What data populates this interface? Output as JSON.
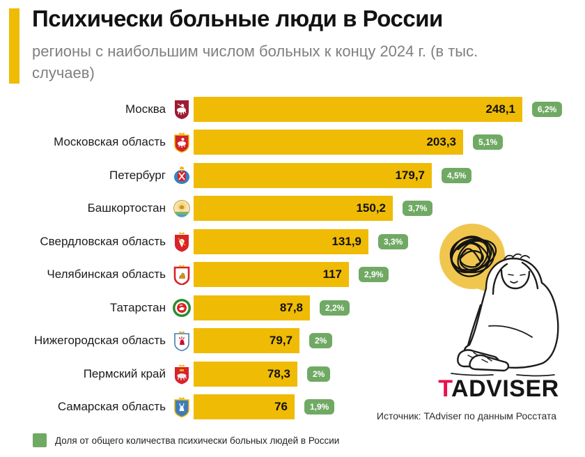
{
  "header": {
    "title": "Психически больные люди в России",
    "subtitle": "регионы с наибольшим числом больных к концу 2024 г. (в тыс. случаев)"
  },
  "chart_data": {
    "type": "bar",
    "orientation": "horizontal",
    "unit": "тыс. случаев",
    "xlim": [
      0,
      248.1
    ],
    "bar_color": "#EFBB05",
    "badge_color": "#70A964",
    "categories": [
      "Москва",
      "Московская область",
      "Петербург",
      "Башкортостан",
      "Свердловская область",
      "Челябинская область",
      "Татарстан",
      "Нижегородская область",
      "Пермский край",
      "Самарская область"
    ],
    "values": [
      248.1,
      203.3,
      179.7,
      150.2,
      131.9,
      117,
      87.8,
      79.7,
      78.3,
      76
    ],
    "shares_pct": [
      6.2,
      5.1,
      4.5,
      3.7,
      3.3,
      2.9,
      2.2,
      2,
      2,
      1.9
    ],
    "rows": [
      {
        "region": "Москва",
        "value": "248,1",
        "value_num": 248.1,
        "share": "6,2%",
        "emblem": "moscow"
      },
      {
        "region": "Московская область",
        "value": "203,3",
        "value_num": 203.3,
        "share": "5,1%",
        "emblem": "moscow-oblast"
      },
      {
        "region": "Петербург",
        "value": "179,7",
        "value_num": 179.7,
        "share": "4,5%",
        "emblem": "saint-petersburg"
      },
      {
        "region": "Башкортостан",
        "value": "150,2",
        "value_num": 150.2,
        "share": "3,7%",
        "emblem": "bashkortostan"
      },
      {
        "region": "Свердловская область",
        "value": "131,9",
        "value_num": 131.9,
        "share": "3,3%",
        "emblem": "sverdlovsk-oblast"
      },
      {
        "region": "Челябинская область",
        "value": "117",
        "value_num": 117,
        "share": "2,9%",
        "emblem": "chelyabinsk-oblast"
      },
      {
        "region": "Татарстан",
        "value": "87,8",
        "value_num": 87.8,
        "share": "2,2%",
        "emblem": "tatarstan"
      },
      {
        "region": "Нижегородская область",
        "value": "79,7",
        "value_num": 79.7,
        "share": "2%",
        "emblem": "nizhny-novgorod-oblast"
      },
      {
        "region": "Пермский край",
        "value": "78,3",
        "value_num": 78.3,
        "share": "2%",
        "emblem": "perm-krai"
      },
      {
        "region": "Самарская область",
        "value": "76",
        "value_num": 76,
        "share": "1,9%",
        "emblem": "samara-oblast"
      }
    ],
    "legend": "Доля от общего количества психически больных людей в России"
  },
  "branding": {
    "logo_t": "T",
    "logo_rest": "ADVISER",
    "source": "Источник: TAdviser по данным Росстата"
  }
}
